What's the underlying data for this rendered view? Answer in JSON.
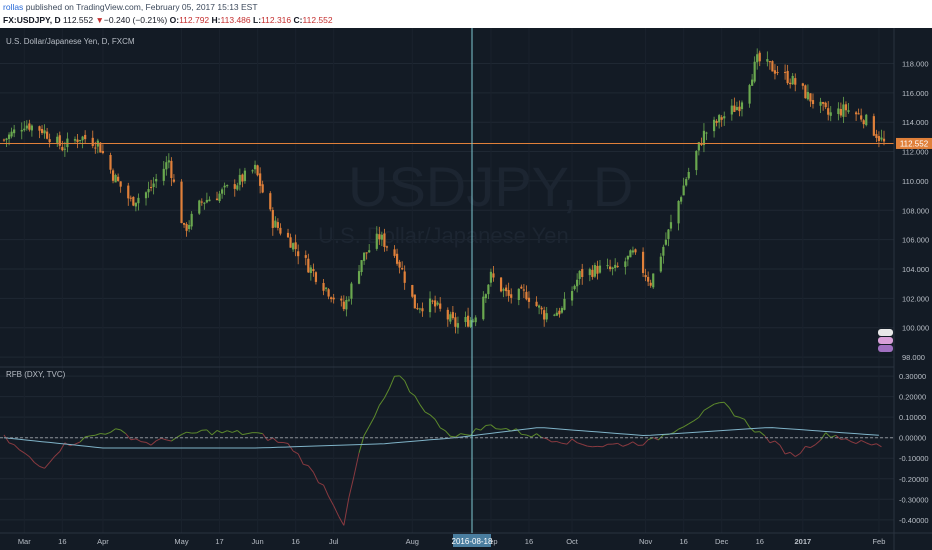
{
  "header": {
    "user": "rollas",
    "published": "published on TradingView.com, February 05, 2017 15:13 EST",
    "symbol": "FX:USDJPY, D",
    "last": "112.552",
    "arrow": "▼",
    "change": "−0.240 (−0.21%)",
    "o_label": "O:",
    "o": "112.792",
    "h_label": "H:",
    "h": "113.486",
    "l_label": "L:",
    "l": "112.316",
    "c_label": "C:",
    "c": "112.552"
  },
  "main_pane": {
    "title": "U.S. Dollar/Japanese Yen, D, FXCM",
    "watermark": "USDJPY, D",
    "watermark_sub": "U.S. Dollar/Japanese Yen",
    "price_label": "112.552"
  },
  "indicator_pane": {
    "title": "RFB (DXY, TVC)"
  },
  "crosshair_date": "2016-08-18",
  "colors": {
    "background": "#131b25",
    "up_candle": "#6aa84f",
    "down_candle": "#e0803a",
    "price_line": "#e0803a",
    "crosshair": "#7fc8d2",
    "indicator_pos": "#5d8a2c",
    "indicator_neg": "#8a3a40",
    "indicator_ma": "#7fb3c8"
  },
  "chart_data": {
    "type": "candlestick",
    "y_axis_main": {
      "ticks": [
        "118.000",
        "116.000",
        "114.000",
        "112.000",
        "110.000",
        "108.000",
        "106.000",
        "104.000",
        "102.000",
        "100.000",
        "98.000"
      ],
      "ylim": [
        97.8,
        119.6
      ]
    },
    "y_axis_indicator": {
      "ticks": [
        "0.30000",
        "0.20000",
        "0.10000",
        "0.00000",
        "-0.10000",
        "-0.20000",
        "-0.30000",
        "-0.40000"
      ],
      "ylim": [
        -0.43,
        0.32
      ]
    },
    "x_ticks": [
      "Mar",
      "16",
      "Apr",
      "May",
      "17",
      "Jun",
      "16",
      "Jul",
      "Aug",
      "Sep",
      "16",
      "Oct",
      "Nov",
      "16",
      "Dec",
      "16",
      "2017",
      "Feb"
    ],
    "close_series": [
      {
        "d": "2016-02-22",
        "c": 112.8
      },
      {
        "d": "2016-03-01",
        "c": 113.9
      },
      {
        "d": "2016-03-08",
        "c": 113.5
      },
      {
        "d": "2016-03-16",
        "c": 112.3
      },
      {
        "d": "2016-03-23",
        "c": 113.0
      },
      {
        "d": "2016-03-30",
        "c": 112.6
      },
      {
        "d": "2016-04-05",
        "c": 110.4
      },
      {
        "d": "2016-04-12",
        "c": 108.6
      },
      {
        "d": "2016-04-19",
        "c": 109.3
      },
      {
        "d": "2016-04-27",
        "c": 111.4
      },
      {
        "d": "2016-05-03",
        "c": 106.6
      },
      {
        "d": "2016-05-10",
        "c": 108.6
      },
      {
        "d": "2016-05-17",
        "c": 109.1
      },
      {
        "d": "2016-05-24",
        "c": 109.9
      },
      {
        "d": "2016-05-31",
        "c": 110.8
      },
      {
        "d": "2016-06-07",
        "c": 107.2
      },
      {
        "d": "2016-06-14",
        "c": 105.9
      },
      {
        "d": "2016-06-21",
        "c": 104.2
      },
      {
        "d": "2016-06-28",
        "c": 102.7
      },
      {
        "d": "2016-07-05",
        "c": 101.3
      },
      {
        "d": "2016-07-12",
        "c": 104.7
      },
      {
        "d": "2016-07-19",
        "c": 106.2
      },
      {
        "d": "2016-07-26",
        "c": 104.8
      },
      {
        "d": "2016-08-02",
        "c": 101.5
      },
      {
        "d": "2016-08-09",
        "c": 101.6
      },
      {
        "d": "2016-08-18",
        "c": 100.2
      },
      {
        "d": "2016-08-25",
        "c": 100.6
      },
      {
        "d": "2016-09-01",
        "c": 103.5
      },
      {
        "d": "2016-09-08",
        "c": 102.1
      },
      {
        "d": "2016-09-15",
        "c": 102.3
      },
      {
        "d": "2016-09-22",
        "c": 100.9
      },
      {
        "d": "2016-09-29",
        "c": 101.2
      },
      {
        "d": "2016-10-06",
        "c": 103.6
      },
      {
        "d": "2016-10-13",
        "c": 104.0
      },
      {
        "d": "2016-10-20",
        "c": 103.9
      },
      {
        "d": "2016-10-27",
        "c": 105.0
      },
      {
        "d": "2016-11-03",
        "c": 103.1
      },
      {
        "d": "2016-11-10",
        "c": 106.5
      },
      {
        "d": "2016-11-17",
        "c": 110.2
      },
      {
        "d": "2016-11-24",
        "c": 113.2
      },
      {
        "d": "2016-12-01",
        "c": 114.3
      },
      {
        "d": "2016-12-08",
        "c": 115.2
      },
      {
        "d": "2016-12-15",
        "c": 118.2
      },
      {
        "d": "2016-12-22",
        "c": 117.6
      },
      {
        "d": "2016-12-29",
        "c": 116.8
      },
      {
        "d": "2017-01-05",
        "c": 115.6
      },
      {
        "d": "2017-01-12",
        "c": 114.5
      },
      {
        "d": "2017-01-19",
        "c": 114.9
      },
      {
        "d": "2017-01-26",
        "c": 114.3
      },
      {
        "d": "2017-02-03",
        "c": 112.552
      }
    ],
    "indicator_series": [
      {
        "d": "2016-02-22",
        "v": 0.0
      },
      {
        "d": "2016-03-08",
        "v": -0.15
      },
      {
        "d": "2016-03-16",
        "v": -0.04
      },
      {
        "d": "2016-04-05",
        "v": 0.04
      },
      {
        "d": "2016-04-19",
        "v": -0.03
      },
      {
        "d": "2016-05-10",
        "v": 0.03
      },
      {
        "d": "2016-05-31",
        "v": 0.02
      },
      {
        "d": "2016-06-14",
        "v": -0.04
      },
      {
        "d": "2016-06-28",
        "v": -0.25
      },
      {
        "d": "2016-07-05",
        "v": -0.42
      },
      {
        "d": "2016-07-12",
        "v": -0.02
      },
      {
        "d": "2016-07-26",
        "v": 0.31
      },
      {
        "d": "2016-08-09",
        "v": 0.09
      },
      {
        "d": "2016-08-18",
        "v": 0.0
      },
      {
        "d": "2016-09-01",
        "v": 0.06
      },
      {
        "d": "2016-09-22",
        "v": 0.0
      },
      {
        "d": "2016-10-13",
        "v": -0.04
      },
      {
        "d": "2016-11-03",
        "v": -0.02
      },
      {
        "d": "2016-11-17",
        "v": 0.07
      },
      {
        "d": "2016-12-01",
        "v": 0.17
      },
      {
        "d": "2016-12-15",
        "v": 0.03
      },
      {
        "d": "2016-12-29",
        "v": -0.09
      },
      {
        "d": "2017-01-12",
        "v": 0.02
      },
      {
        "d": "2017-01-26",
        "v": -0.03
      },
      {
        "d": "2017-02-03",
        "v": -0.04
      }
    ]
  }
}
